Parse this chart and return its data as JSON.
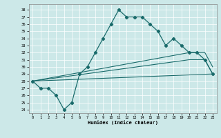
{
  "xlabel": "Humidex (Indice chaleur)",
  "bg_color": "#cce8e8",
  "line_color": "#1a6b6b",
  "xlim": [
    -0.5,
    23.5
  ],
  "ylim": [
    23.5,
    38.8
  ],
  "yticks": [
    24,
    25,
    26,
    27,
    28,
    29,
    30,
    31,
    32,
    33,
    34,
    35,
    36,
    37,
    38
  ],
  "xticks": [
    0,
    1,
    2,
    3,
    4,
    5,
    6,
    7,
    8,
    9,
    10,
    11,
    12,
    13,
    14,
    15,
    16,
    17,
    18,
    19,
    20,
    21,
    22,
    23
  ],
  "line1_x": [
    0,
    1,
    2,
    3,
    4,
    5,
    6,
    7,
    8,
    9,
    10,
    11,
    12,
    13,
    14,
    15,
    16,
    17,
    18,
    19,
    20,
    21,
    22,
    23
  ],
  "line1_y": [
    28,
    27,
    27,
    26,
    24,
    25,
    29,
    30,
    32,
    34,
    36,
    38,
    37,
    37,
    37,
    36,
    35,
    33,
    34,
    33,
    32,
    32,
    31,
    29
  ],
  "line2_x": [
    0,
    23
  ],
  "line2_y": [
    28,
    29
  ],
  "line3_x": [
    0,
    20,
    21,
    22,
    23
  ],
  "line3_y": [
    28,
    32,
    32,
    32,
    30
  ],
  "line4_x": [
    0,
    20,
    21,
    22,
    23
  ],
  "line4_y": [
    28,
    31,
    31,
    31,
    29
  ]
}
